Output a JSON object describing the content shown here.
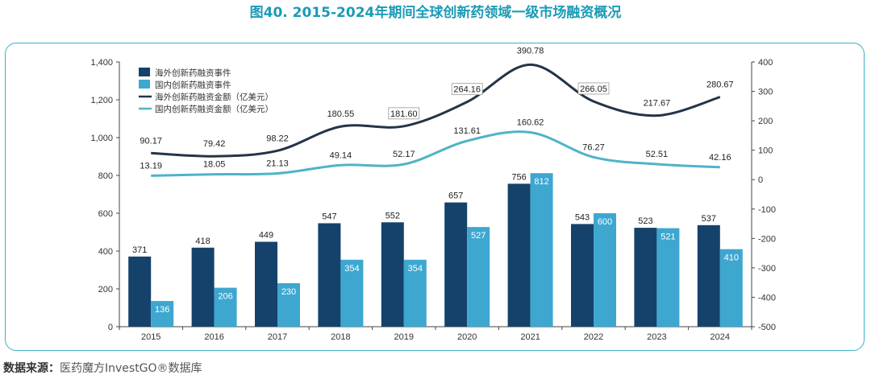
{
  "title": "图40. 2015-2024年期间全球创新药领域一级市场融资概况",
  "source": {
    "label": "数据来源：",
    "text": "医药魔方InvestGO®数据库"
  },
  "colors": {
    "title": "#1a9bb5",
    "overseas_bar": "#15426b",
    "domestic_bar": "#3ea7d0",
    "overseas_line": "#243447",
    "domestic_line": "#4fb3c8",
    "panel_border": "#3ab0c8"
  },
  "chart_data": {
    "type": "bar",
    "categories": [
      "2015",
      "2016",
      "2017",
      "2018",
      "2019",
      "2020",
      "2021",
      "2022",
      "2023",
      "2024"
    ],
    "y_left": {
      "min": 0,
      "max": 1400,
      "ticks": [
        "0",
        "200",
        "400",
        "600",
        "800",
        "1,000",
        "1,200",
        "1,400"
      ]
    },
    "y_right": {
      "min": -500,
      "max": 400,
      "ticks": [
        "-500",
        "-400",
        "-300",
        "-200",
        "-100",
        "0",
        "100",
        "200",
        "300",
        "400"
      ]
    },
    "grid": false,
    "legend_position": "top-left",
    "series": [
      {
        "name": "海外创新药融资事件",
        "type": "bar",
        "axis": "left",
        "values": [
          371,
          418,
          449,
          547,
          552,
          657,
          756,
          543,
          523,
          537
        ]
      },
      {
        "name": "国内创新药融资事件",
        "type": "bar",
        "axis": "left",
        "values": [
          136,
          206,
          230,
          354,
          354,
          527,
          812,
          600,
          521,
          410
        ]
      },
      {
        "name": "海外创新药融资金额（亿美元）",
        "type": "line",
        "axis": "right",
        "values": [
          90.17,
          79.42,
          98.22,
          180.55,
          181.6,
          264.16,
          390.78,
          266.05,
          217.67,
          280.67
        ],
        "labels": [
          "90.17",
          "79.42",
          "98.22",
          "180.55",
          "181.60",
          "264.16",
          "390.78",
          "266.05",
          "217.67",
          "280.67"
        ]
      },
      {
        "name": "国内创新药融资金额（亿美元）",
        "type": "line",
        "axis": "right",
        "values": [
          13.19,
          18.05,
          21.13,
          49.14,
          52.17,
          131.61,
          160.62,
          76.27,
          52.51,
          42.16
        ],
        "labels": [
          "13.19",
          "18.05",
          "21.13",
          "49.14",
          "52.17",
          "131.61",
          "160.62",
          "76.27",
          "52.51",
          "42.16"
        ]
      }
    ]
  }
}
